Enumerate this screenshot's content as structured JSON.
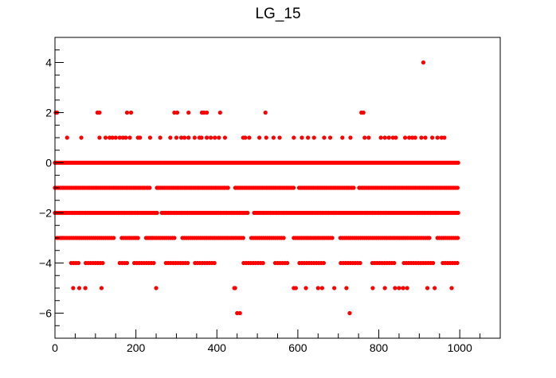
{
  "chart_data": {
    "type": "scatter",
    "title": "LG_15",
    "xlabel": "",
    "ylabel": "",
    "xlim": [
      0,
      1100
    ],
    "ylim": [
      -7,
      5
    ],
    "x_ticks": [
      "0",
      "200",
      "400",
      "600",
      "800",
      "1000"
    ],
    "y_ticks": [
      "−6",
      "−4",
      "−2",
      "0",
      "2",
      "4"
    ],
    "grid": false,
    "marker_color": "#ff0000",
    "series": [
      {
        "points": [
          [
            2,
            2
          ],
          [
            5,
            2
          ],
          [
            910,
            4
          ],
          [
            105,
            2
          ],
          [
            110,
            2
          ],
          [
            178,
            2
          ],
          [
            188,
            2
          ],
          [
            295,
            2
          ],
          [
            302,
            2
          ],
          [
            330,
            2
          ],
          [
            363,
            2
          ],
          [
            368,
            2
          ],
          [
            375,
            2
          ],
          [
            408,
            2
          ],
          [
            520,
            2
          ],
          [
            757,
            2
          ],
          [
            762,
            2
          ],
          [
            30,
            1
          ],
          [
            65,
            1
          ],
          [
            110,
            1
          ],
          [
            125,
            1
          ],
          [
            135,
            1
          ],
          [
            142,
            1
          ],
          [
            150,
            1
          ],
          [
            160,
            1
          ],
          [
            168,
            1
          ],
          [
            175,
            1
          ],
          [
            185,
            1
          ],
          [
            205,
            1
          ],
          [
            210,
            1
          ],
          [
            235,
            1
          ],
          [
            260,
            1
          ],
          [
            285,
            1
          ],
          [
            300,
            1
          ],
          [
            312,
            1
          ],
          [
            320,
            1
          ],
          [
            330,
            1
          ],
          [
            345,
            1
          ],
          [
            357,
            1
          ],
          [
            362,
            1
          ],
          [
            375,
            1
          ],
          [
            385,
            1
          ],
          [
            395,
            1
          ],
          [
            405,
            1
          ],
          [
            420,
            1
          ],
          [
            465,
            1
          ],
          [
            470,
            1
          ],
          [
            480,
            1
          ],
          [
            505,
            1
          ],
          [
            522,
            1
          ],
          [
            540,
            1
          ],
          [
            555,
            1
          ],
          [
            590,
            1
          ],
          [
            610,
            1
          ],
          [
            625,
            1
          ],
          [
            640,
            1
          ],
          [
            665,
            1
          ],
          [
            680,
            1
          ],
          [
            710,
            1
          ],
          [
            730,
            1
          ],
          [
            765,
            1
          ],
          [
            775,
            1
          ],
          [
            805,
            1
          ],
          [
            815,
            1
          ],
          [
            825,
            1
          ],
          [
            835,
            1
          ],
          [
            842,
            1
          ],
          [
            865,
            1
          ],
          [
            875,
            1
          ],
          [
            883,
            1
          ],
          [
            890,
            1
          ],
          [
            905,
            1
          ],
          [
            915,
            1
          ],
          [
            932,
            1
          ],
          [
            945,
            1
          ],
          [
            955,
            1
          ],
          [
            962,
            1
          ],
          [
            445,
            -5
          ],
          [
            450,
            -6
          ],
          [
            457,
            -6
          ],
          [
            728,
            -6
          ],
          [
            45,
            -5
          ],
          [
            60,
            -5
          ],
          [
            75,
            -5
          ],
          [
            115,
            -5
          ],
          [
            250,
            -5
          ],
          [
            443,
            -5
          ],
          [
            590,
            -5
          ],
          [
            595,
            -5
          ],
          [
            620,
            -5
          ],
          [
            650,
            -5
          ],
          [
            660,
            -5
          ],
          [
            690,
            -5
          ],
          [
            720,
            -5
          ],
          [
            785,
            -5
          ],
          [
            815,
            -5
          ],
          [
            840,
            -5
          ],
          [
            850,
            -5
          ],
          [
            860,
            -5
          ],
          [
            870,
            -5
          ],
          [
            920,
            -5
          ],
          [
            938,
            -5
          ],
          [
            980,
            -5
          ]
        ]
      }
    ]
  }
}
